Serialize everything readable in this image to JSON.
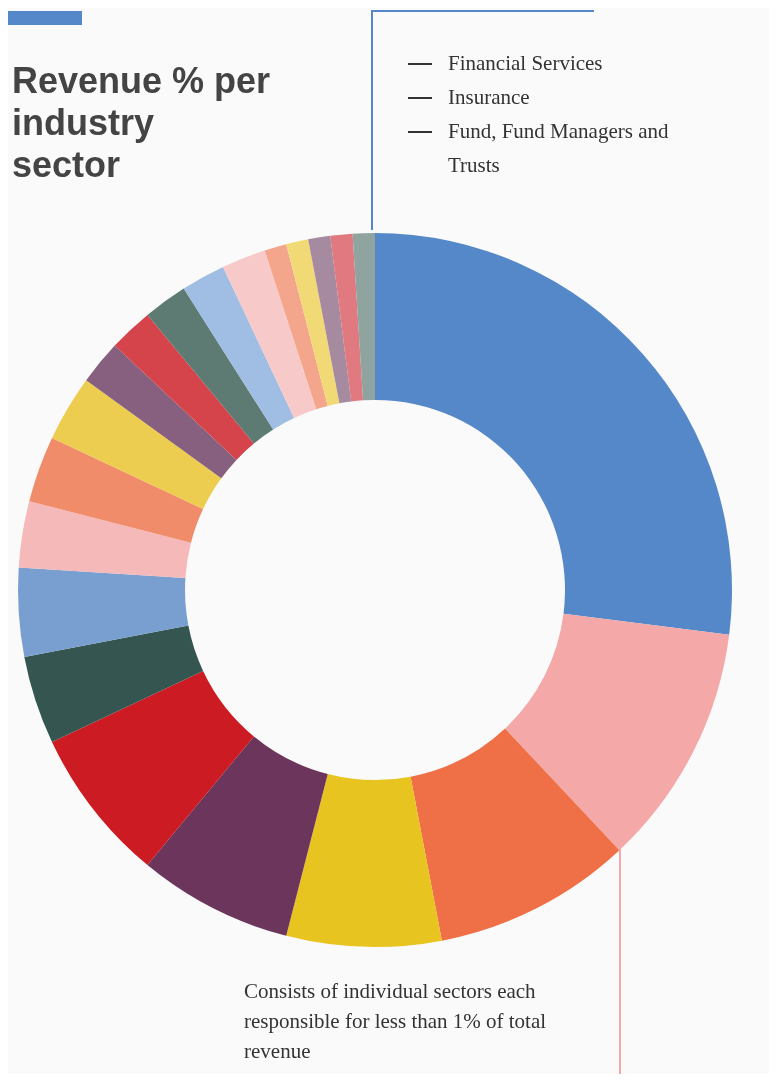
{
  "chart_data": {
    "type": "donut",
    "title": "Revenue % per industry sector",
    "categories": [
      null,
      null,
      null,
      null,
      null,
      null,
      null,
      null,
      null,
      null,
      null,
      null,
      null,
      null,
      null,
      null,
      null,
      null,
      null,
      null,
      null
    ],
    "values": [
      27,
      11,
      9,
      7,
      7,
      7,
      4,
      4,
      3,
      3,
      3,
      2,
      2,
      2,
      2,
      2,
      1,
      1,
      1,
      1,
      1
    ],
    "colors": [
      "#5588c8",
      "#f4a8a8",
      "#ef7046",
      "#e8c421",
      "#6b355c",
      "#cc1b22",
      "#355650",
      "#789fd0",
      "#f6b9b9",
      "#f08c69",
      "#eccd4f",
      "#86607e",
      "#d6444b",
      "#5e7b73",
      "#a0bde3",
      "#f8c9c9",
      "#f3a68b",
      "#f1da75",
      "#a68ba0",
      "#e07980",
      "#8fa49f"
    ],
    "annotations": [
      "Financial Services",
      "Insurance",
      "Fund, Fund Managers and Trusts",
      "Consists of individual sectors each responsible for less than 1% of total revenue"
    ]
  }
}
